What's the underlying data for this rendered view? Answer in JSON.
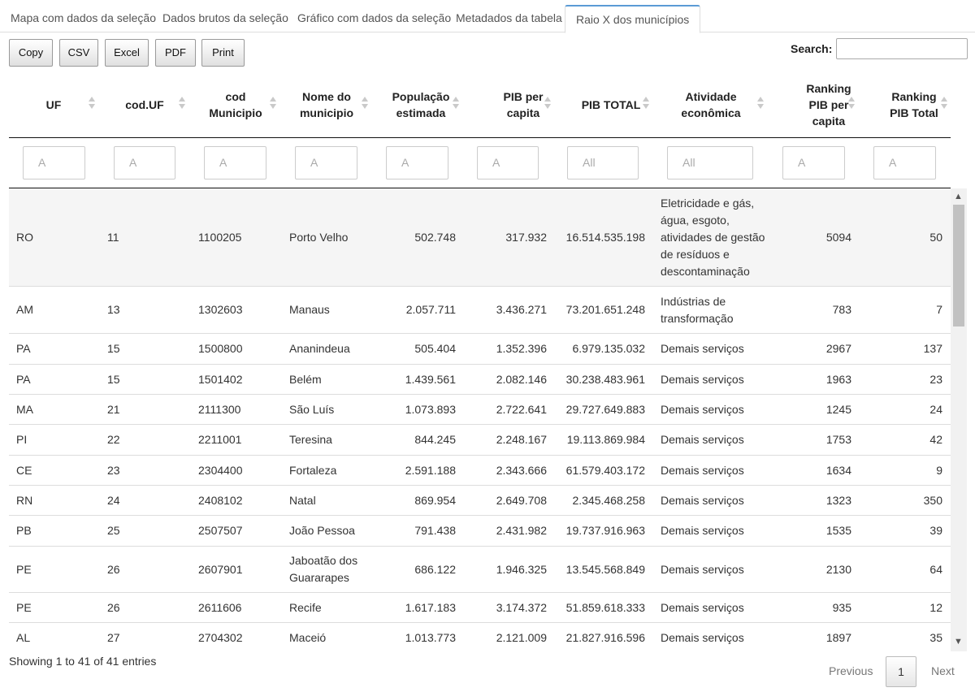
{
  "tabs": [
    "Mapa com dados da seleção",
    "Dados brutos da seleção",
    "Gráfico com dados da seleção",
    "Metadados da tabela",
    "Raio X dos municípios"
  ],
  "buttons": {
    "copy": "Copy",
    "csv": "CSV",
    "excel": "Excel",
    "pdf": "PDF",
    "print": "Print"
  },
  "search": {
    "label": "Search:",
    "value": ""
  },
  "columns": [
    {
      "line1": "UF",
      "line2": "",
      "line3": ""
    },
    {
      "line1": "cod.UF",
      "line2": "",
      "line3": ""
    },
    {
      "line1": "cod",
      "line2": "Municipio",
      "line3": ""
    },
    {
      "line1": "Nome do",
      "line2": "municipio",
      "line3": ""
    },
    {
      "line1": "População",
      "line2": "estimada",
      "line3": ""
    },
    {
      "line1": "PIB per",
      "line2": "capita",
      "line3": ""
    },
    {
      "line1": "PIB TOTAL",
      "line2": "",
      "line3": ""
    },
    {
      "line1": "Atividade",
      "line2": "econômica",
      "line3": ""
    },
    {
      "line1": "Ranking",
      "line2": "PIB per",
      "line3": "capita"
    },
    {
      "line1": "Ranking",
      "line2": "PIB Total",
      "line3": ""
    }
  ],
  "filters": [
    "A",
    "A",
    "A",
    "A",
    "A",
    "A",
    "All",
    "All",
    "A",
    "A"
  ],
  "rows": [
    {
      "c": [
        "RO",
        "11",
        "1100205",
        "Porto Velho",
        "502.748",
        "317.932",
        "16.514.535.198",
        "Eletricidade e gás, água, esgoto, atividades de gestão de resíduos e descontaminação",
        "5094",
        "50"
      ]
    },
    {
      "c": [
        "AM",
        "13",
        "1302603",
        "Manaus",
        "2.057.711",
        "3.436.271",
        "73.201.651.248",
        "Indústrias de transformação",
        "783",
        "7"
      ]
    },
    {
      "c": [
        "PA",
        "15",
        "1500800",
        "Ananindeua",
        "505.404",
        "1.352.396",
        "6.979.135.032",
        "Demais serviços",
        "2967",
        "137"
      ]
    },
    {
      "c": [
        "PA",
        "15",
        "1501402",
        "Belém",
        "1.439.561",
        "2.082.146",
        "30.238.483.961",
        "Demais serviços",
        "1963",
        "23"
      ]
    },
    {
      "c": [
        "MA",
        "21",
        "2111300",
        "São Luís",
        "1.073.893",
        "2.722.641",
        "29.727.649.883",
        "Demais serviços",
        "1245",
        "24"
      ]
    },
    {
      "c": [
        "PI",
        "22",
        "2211001",
        "Teresina",
        "844.245",
        "2.248.167",
        "19.113.869.984",
        "Demais serviços",
        "1753",
        "42"
      ]
    },
    {
      "c": [
        "CE",
        "23",
        "2304400",
        "Fortaleza",
        "2.591.188",
        "2.343.666",
        "61.579.403.172",
        "Demais serviços",
        "1634",
        "9"
      ]
    },
    {
      "c": [
        "RN",
        "24",
        "2408102",
        "Natal",
        "869.954",
        "2.649.708",
        "2.345.468.258",
        "Demais serviços",
        "1323",
        "350"
      ]
    },
    {
      "c": [
        "PB",
        "25",
        "2507507",
        "João Pessoa",
        "791.438",
        "2.431.982",
        "19.737.916.963",
        "Demais serviços",
        "1535",
        "39"
      ]
    },
    {
      "c": [
        "PE",
        "26",
        "2607901",
        "Jaboatão dos Guararapes",
        "686.122",
        "1.946.325",
        "13.545.568.849",
        "Demais serviços",
        "2130",
        "64"
      ]
    },
    {
      "c": [
        "PE",
        "26",
        "2611606",
        "Recife",
        "1.617.183",
        "3.174.372",
        "51.859.618.333",
        "Demais serviços",
        "935",
        "12"
      ]
    },
    {
      "c": [
        "AL",
        "27",
        "2704302",
        "Maceió",
        "1.013.773",
        "2.121.009",
        "21.827.916.596",
        "Demais serviços",
        "1897",
        "35"
      ]
    }
  ],
  "footer": {
    "info": "Showing 1 to 41 of 41 entries",
    "previous": "Previous",
    "current_page": "1",
    "next": "Next"
  },
  "colors": {
    "accent": "#5b9bd5",
    "row_highlight": "#f5f5f5"
  },
  "icons": [
    "sort-icon",
    "scroll-up-icon",
    "scroll-down-icon"
  ]
}
